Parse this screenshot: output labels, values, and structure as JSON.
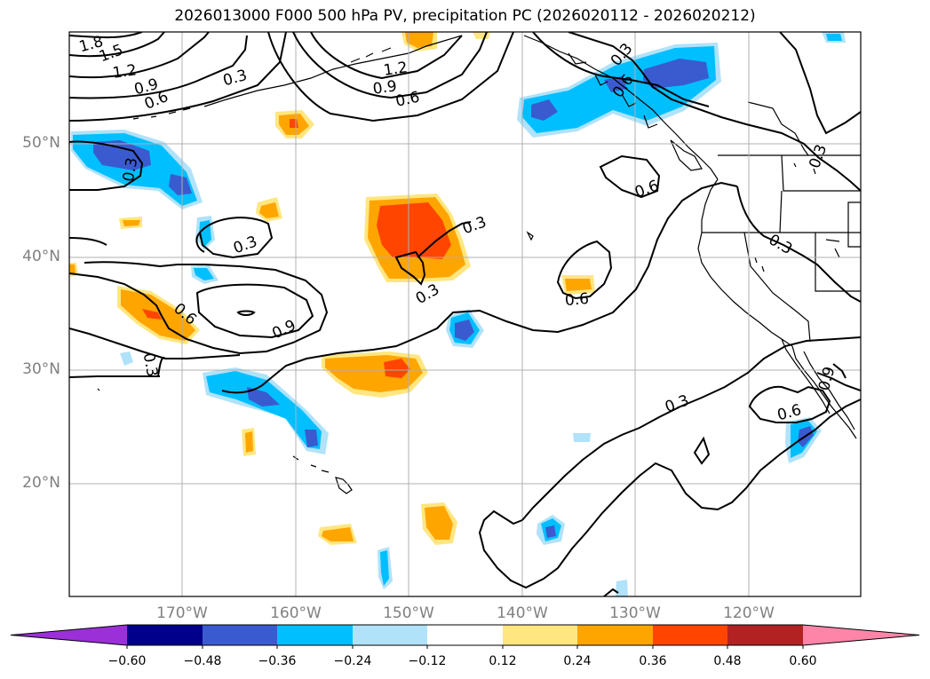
{
  "title": "2026013000 F000 500 hPa PV, precipitation PC (2026020112 - 2026020212)",
  "lat_labels": [
    "50°N",
    "40°N",
    "30°N",
    "20°N"
  ],
  "lon_labels": [
    "170°W",
    "160°W",
    "150°W",
    "140°W",
    "130°W",
    "120°W"
  ],
  "colorbar": {
    "ticks": [
      "−0.60",
      "−0.48",
      "−0.36",
      "−0.24",
      "−0.12",
      "0.12",
      "0.24",
      "0.36",
      "0.48",
      "0.60"
    ],
    "colors": [
      "#9b30d9",
      "#00008b",
      "#3a5bcf",
      "#00bfff",
      "#b0e2fa",
      "#ffffff",
      "#ffe680",
      "#ffa500",
      "#ff4500",
      "#b22222",
      "#ff85a8"
    ]
  },
  "contour_labels": [
    "1.8",
    "1.5",
    "1.2",
    "0.9",
    "0.6",
    "0.3",
    "0.3",
    "1.2",
    "0.9",
    "0.6",
    "0.3",
    "0.6",
    "0.3",
    "0.3",
    "0.3",
    "0.6",
    "0.9",
    "0.6",
    "0.3",
    "0.6",
    "0.3",
    "0.3",
    "0.6",
    "0.9",
    "0.3",
    "0.6",
    "0.3"
  ]
}
